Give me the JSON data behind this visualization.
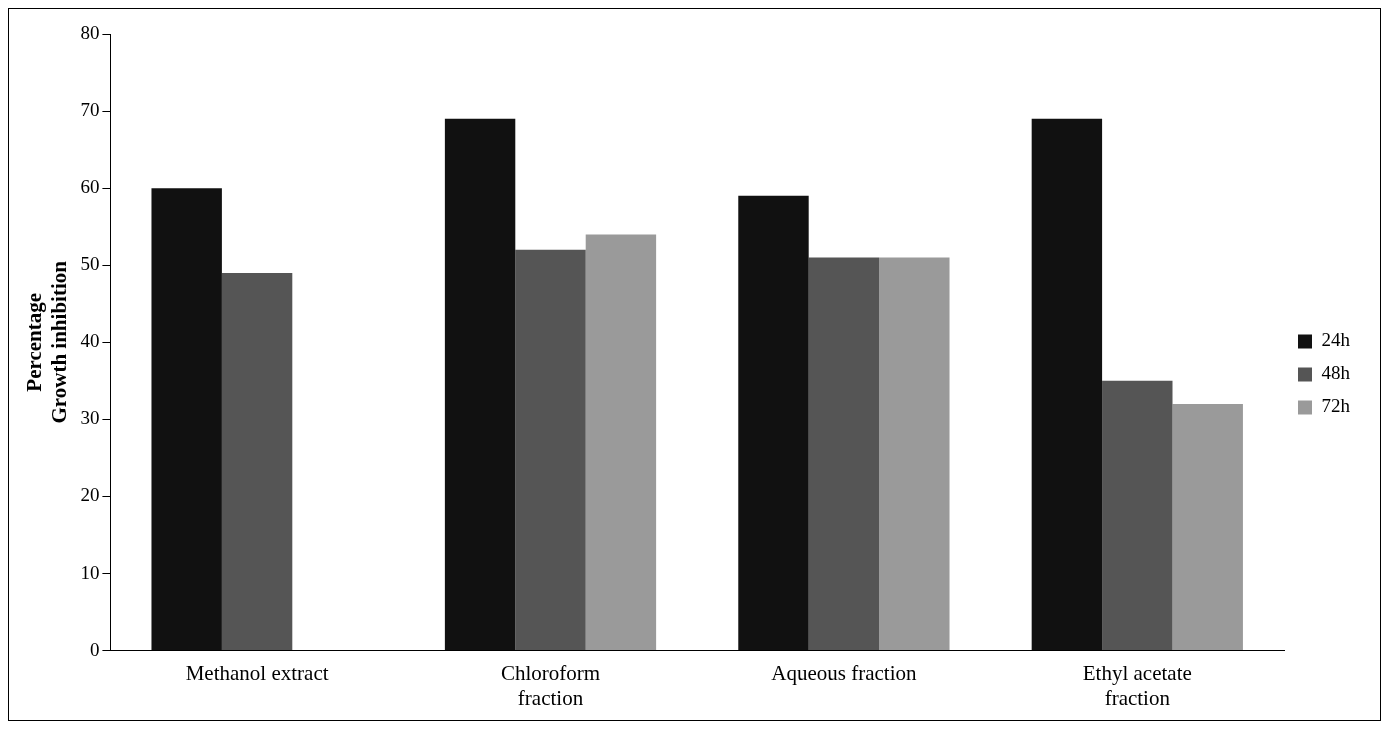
{
  "chart_data": {
    "type": "bar",
    "ylabel": "Percentage\nGrowth inhibition",
    "categories": [
      "Methanol extract",
      "Chloroform fraction",
      "Aqueous fraction",
      "Ethyl acetate fraction"
    ],
    "series": [
      {
        "name": "24h",
        "color": "#111111",
        "values": [
          60,
          69,
          59,
          69
        ]
      },
      {
        "name": "48h",
        "color": "#555555",
        "values": [
          49,
          52,
          51,
          35
        ]
      },
      {
        "name": "72h",
        "color": "#9a9a9a",
        "values": [
          null,
          54,
          51,
          32
        ]
      }
    ],
    "ylim": [
      0,
      80
    ],
    "yticks": [
      0,
      10,
      20,
      30,
      40,
      50,
      60,
      70,
      80
    ],
    "grid": false,
    "legend": "right"
  }
}
